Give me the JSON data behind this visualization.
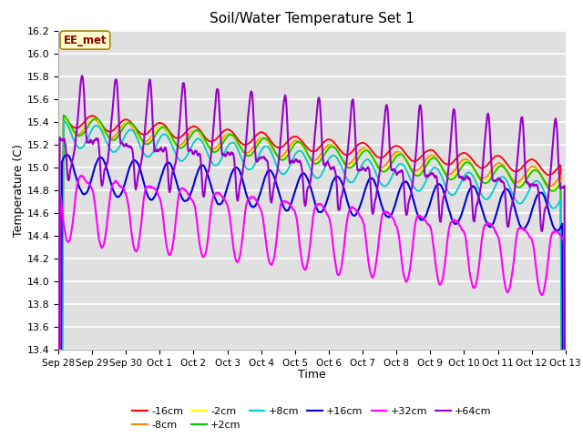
{
  "title": "Soil/Water Temperature Set 1",
  "xlabel": "Time",
  "ylabel": "Temperature (C)",
  "ylim": [
    13.4,
    16.2
  ],
  "yticks": [
    13.4,
    13.6,
    13.8,
    14.0,
    14.2,
    14.4,
    14.6,
    14.8,
    15.0,
    15.2,
    15.4,
    15.6,
    15.8,
    16.0,
    16.2
  ],
  "xtick_labels": [
    "Sep 28",
    "Sep 29",
    "Sep 30",
    "Oct 1",
    "Oct 2",
    "Oct 3",
    "Oct 4",
    "Oct 5",
    "Oct 6",
    "Oct 7",
    "Oct 8",
    "Oct 9",
    "Oct 10",
    "Oct 11",
    "Oct 12",
    "Oct 13"
  ],
  "legend_label": "EE_met",
  "series_labels": [
    "-16cm",
    "-8cm",
    "-2cm",
    "+2cm",
    "+8cm",
    "+16cm",
    "+32cm",
    "+64cm"
  ],
  "series_colors": [
    "#ff0000",
    "#ff8800",
    "#ffff00",
    "#00cc00",
    "#00cccc",
    "#0000dd",
    "#ff00ff",
    "#9900cc"
  ],
  "background_color": "#e0e0e0",
  "fig_color": "#ffffff",
  "legend_row1": [
    "-16cm",
    "-8cm",
    "-2cm",
    "+2cm",
    "+8cm",
    "+16cm"
  ],
  "legend_row2": [
    "+32cm",
    "+64cm"
  ]
}
